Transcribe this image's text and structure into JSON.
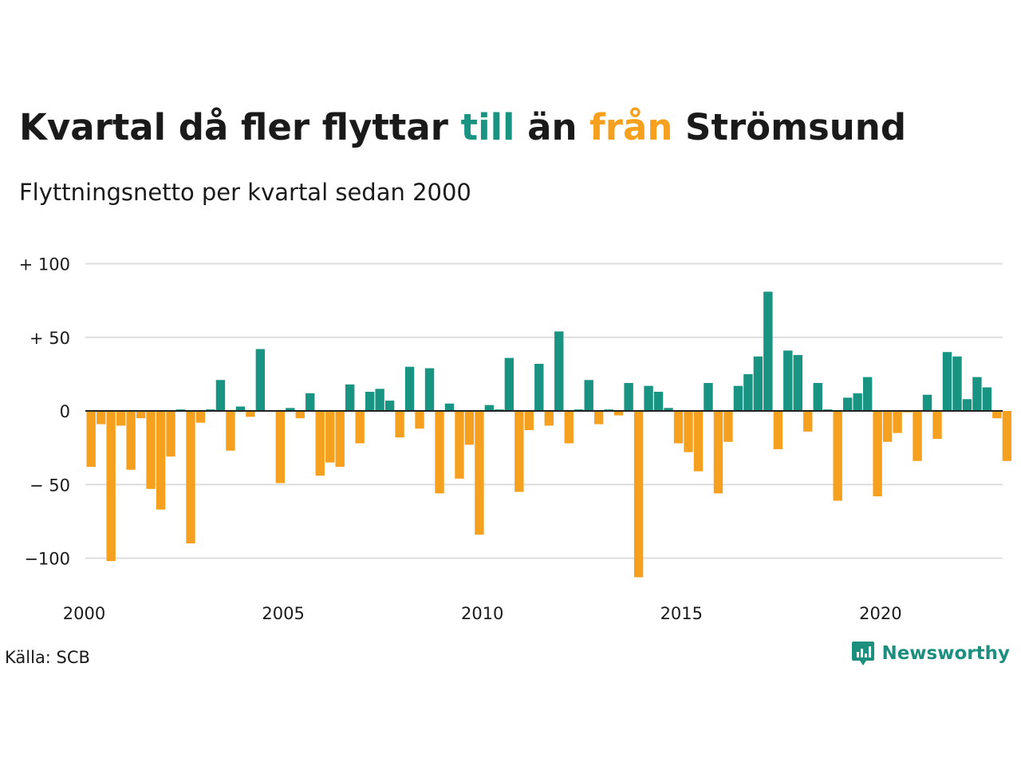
{
  "header": {
    "title_parts": [
      "Kvartal då fler flyttar ",
      "till",
      " än ",
      "från",
      " Strömsund"
    ],
    "subtitle": "Flyttningsnetto per kvartal sedan 2000"
  },
  "footer": {
    "source": "Källa: SCB",
    "brand": "Newsworthy"
  },
  "colors": {
    "positive": "#1a9482",
    "negative": "#f5a11f",
    "brand": "#1d8f7e",
    "grid": "#dddddd",
    "text": "#1a1a1a"
  },
  "chart_data": {
    "type": "bar",
    "title": "Kvartal då fler flyttar till än från Strömsund",
    "subtitle": "Flyttningsnetto per kvartal sedan 2000",
    "x_start": "2000 Q1",
    "x_ticks": [
      "2000",
      "2005",
      "2010",
      "2015",
      "2020"
    ],
    "y_ticks": [
      {
        "value": 100,
        "label": "+ 100"
      },
      {
        "value": 50,
        "label": "+  50"
      },
      {
        "value": 0,
        "label": "0"
      },
      {
        "value": -50,
        "label": "− 50"
      },
      {
        "value": -100,
        "label": "−100"
      }
    ],
    "ylim": [
      -115,
      100
    ],
    "grid": true,
    "series": [
      {
        "values": [
          -38,
          -9,
          -102,
          -10,
          -40,
          -5,
          -53,
          -67,
          -31,
          1,
          -90,
          -8,
          1,
          21,
          -27,
          3,
          -4,
          42,
          0,
          -49,
          2,
          -5,
          12,
          -44,
          -35,
          -38,
          18,
          -22,
          13,
          15,
          7,
          -18,
          30,
          -12,
          29,
          -56,
          5,
          -46,
          -23,
          -84,
          4,
          1,
          36,
          -55,
          -13,
          32,
          -10,
          54,
          -22,
          1,
          21,
          -9,
          1,
          -3,
          19,
          -113,
          17,
          13,
          2,
          -22,
          -28,
          -41,
          19,
          -56,
          -21,
          17,
          25,
          37,
          81,
          -26,
          41,
          38,
          -14,
          19,
          1,
          -61,
          9,
          12,
          23,
          -58,
          -21,
          -15,
          -1,
          -34,
          11,
          -19,
          40,
          37,
          8,
          23,
          16,
          -5,
          -34
        ]
      }
    ]
  }
}
